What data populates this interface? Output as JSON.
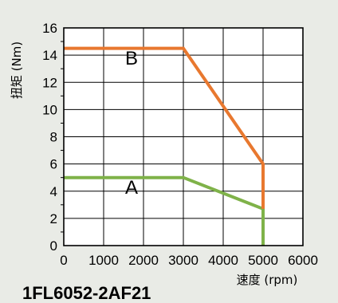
{
  "chart_data": {
    "type": "line",
    "title": "1FL6052-2AF21",
    "xlabel": "速度 (rpm)",
    "ylabel": "扭矩 (Nm)",
    "xlim": [
      0,
      6000
    ],
    "ylim": [
      0,
      16
    ],
    "x_ticks": [
      0,
      1000,
      2000,
      3000,
      4000,
      5000,
      6000
    ],
    "y_ticks": [
      0,
      2,
      4,
      6,
      8,
      10,
      12,
      14,
      16
    ],
    "grid": true,
    "series": [
      {
        "name": "A",
        "color": "#7fb249",
        "points": [
          [
            0,
            5.0
          ],
          [
            3000,
            5.0
          ],
          [
            5000,
            2.7
          ],
          [
            5000,
            0
          ]
        ]
      },
      {
        "name": "B",
        "color": "#e8782f",
        "points": [
          [
            0,
            14.5
          ],
          [
            3000,
            14.5
          ],
          [
            5000,
            6.0
          ],
          [
            5000,
            2.7
          ]
        ]
      }
    ],
    "series_labels": [
      {
        "text": "B",
        "x": 1700,
        "y": 13.3
      },
      {
        "text": "A",
        "x": 1700,
        "y": 3.8
      }
    ]
  }
}
